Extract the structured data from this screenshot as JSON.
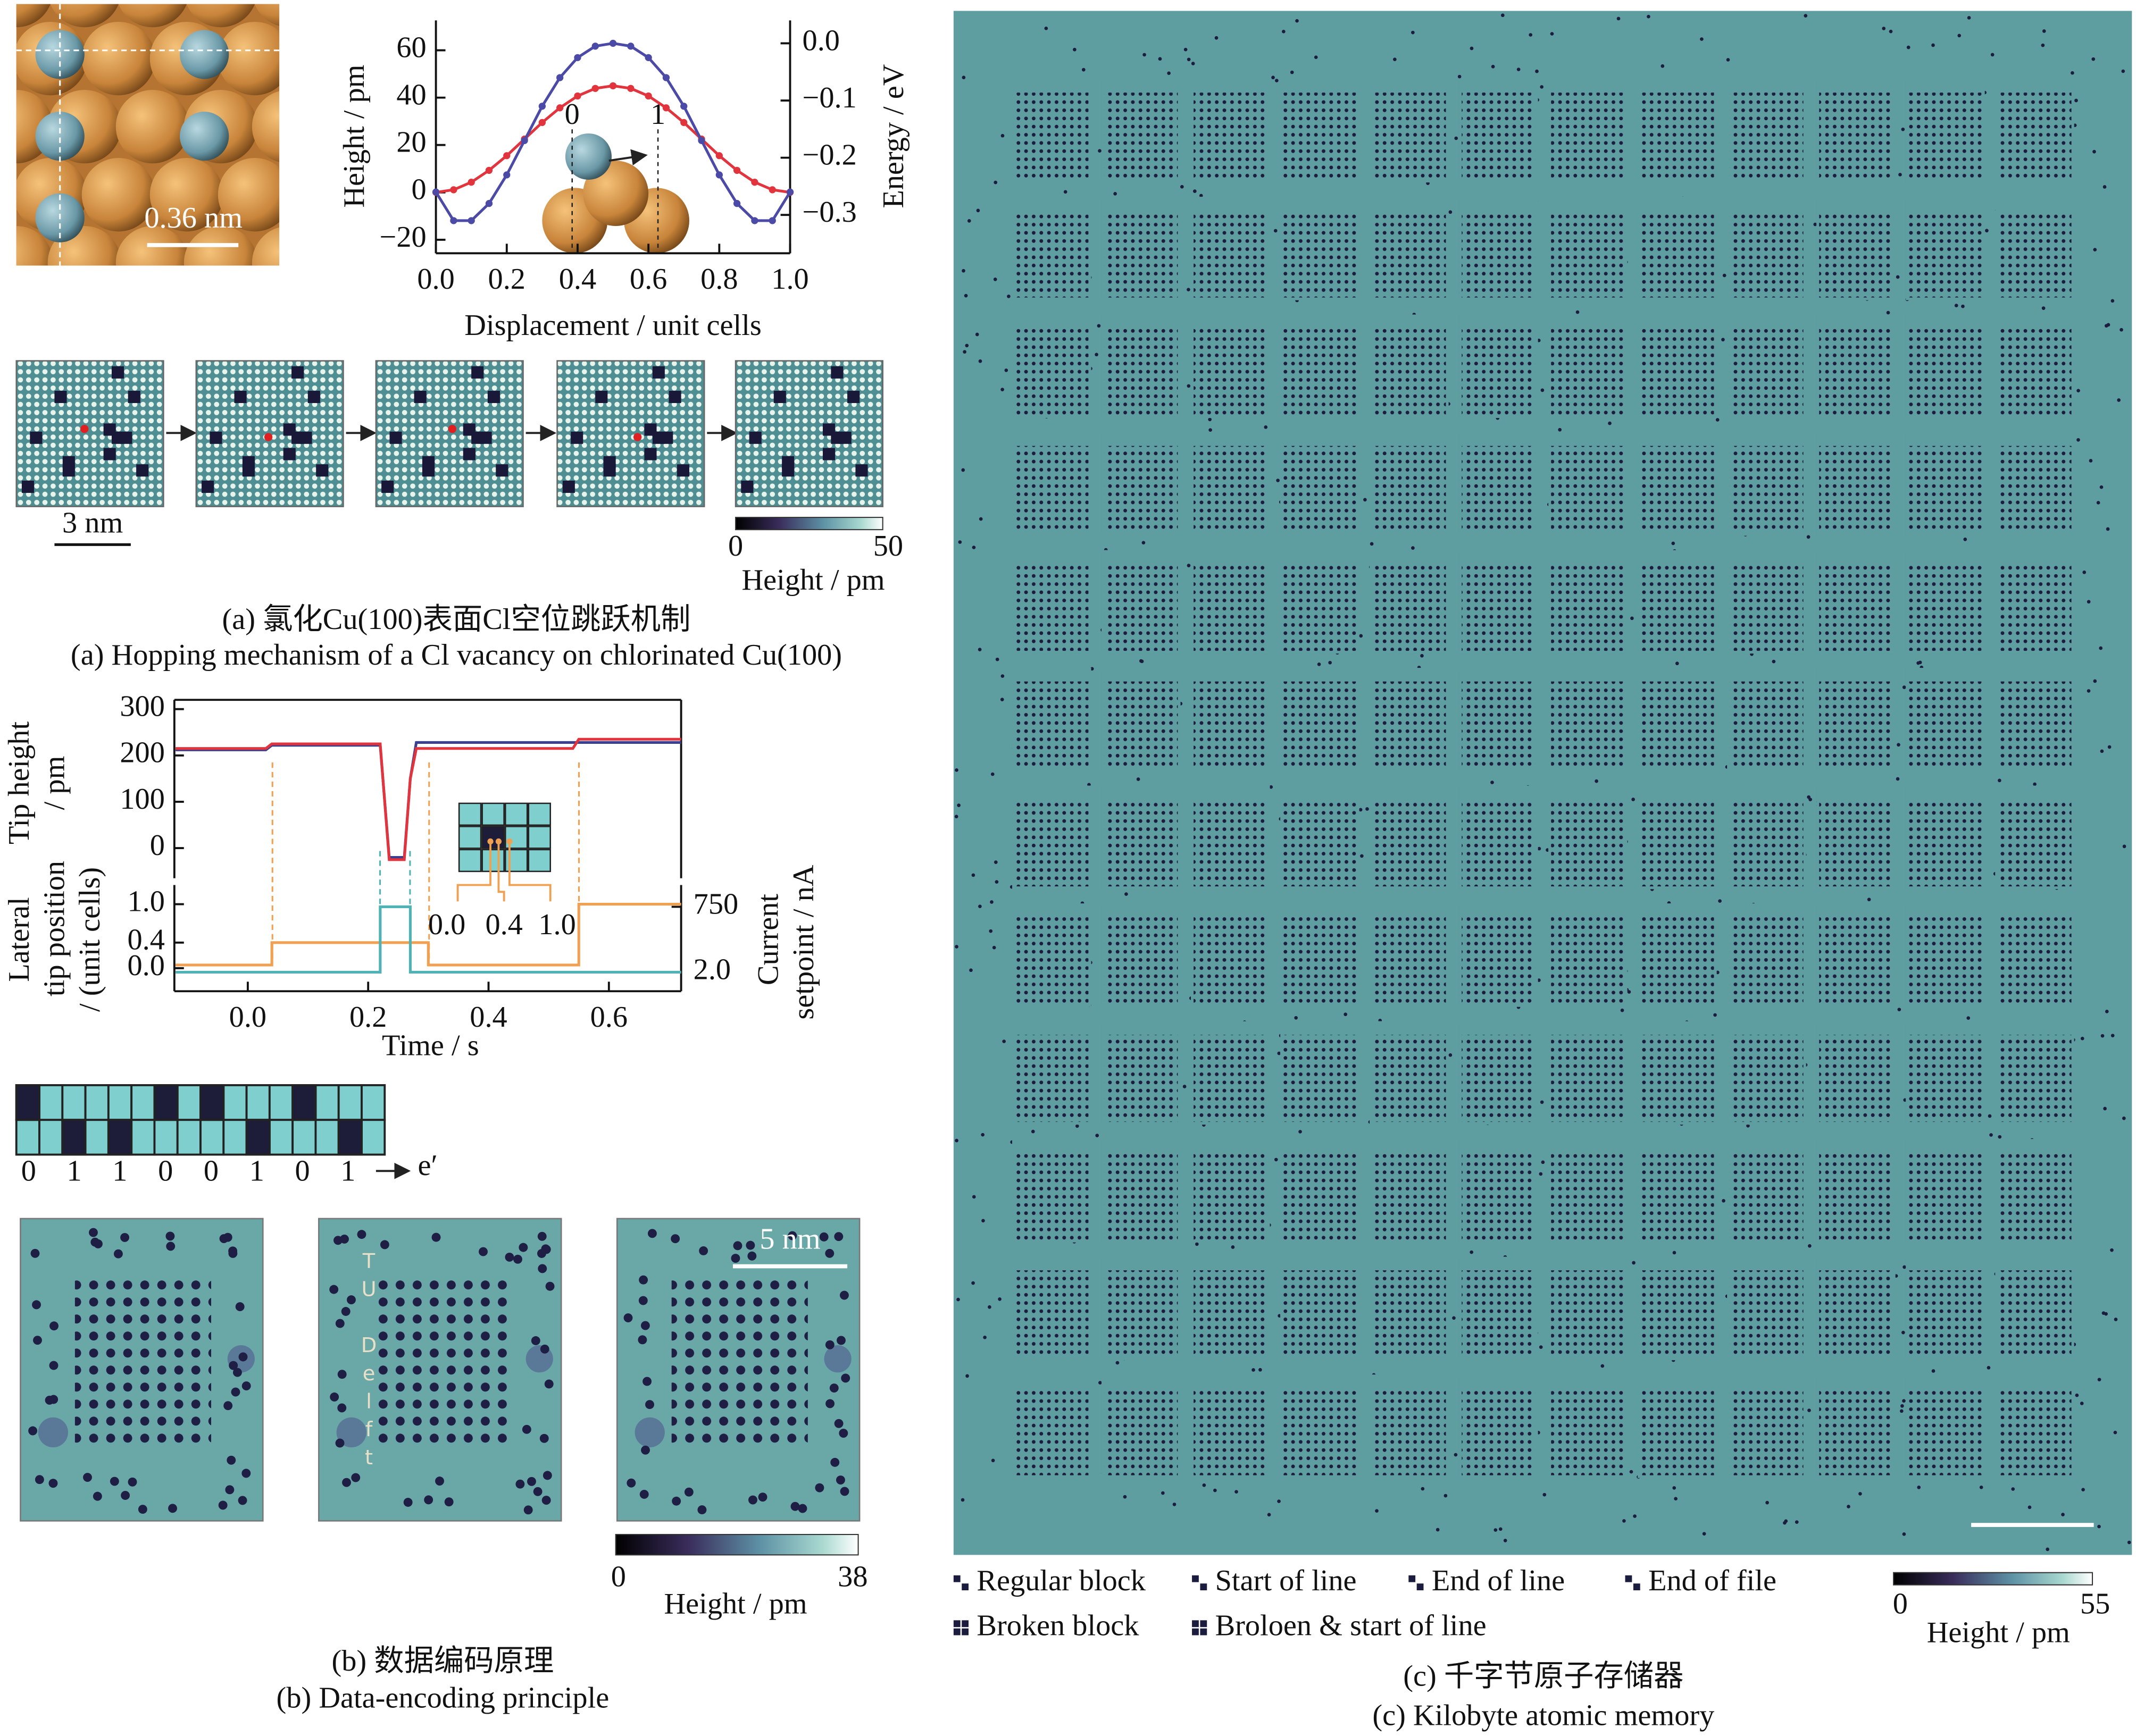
{
  "chart_data": [
    {
      "type": "line",
      "xlabel": "Displacement / unit cells",
      "ylabel": "Height / pm",
      "y2label": "Energy / eV",
      "x": [
        0,
        0.05,
        0.1,
        0.15,
        0.2,
        0.25,
        0.3,
        0.35,
        0.4,
        0.45,
        0.5,
        0.55,
        0.6,
        0.65,
        0.7,
        0.75,
        0.8,
        0.85,
        0.9,
        0.95,
        1
      ],
      "xlim": [
        0,
        1
      ],
      "xticks": [
        {
          "value": 0,
          "label": "0.0"
        },
        {
          "value": 0.2,
          "label": "0.2"
        },
        {
          "value": 0.4,
          "label": "0.4"
        },
        {
          "value": 0.6,
          "label": "0.6"
        },
        {
          "value": 0.8,
          "label": "0.8"
        },
        {
          "value": 1,
          "label": "1.0"
        }
      ],
      "ylim": [
        -25.7,
        72.6
      ],
      "yticks": [
        {
          "value": -20,
          "label": "−20"
        },
        0,
        20,
        40,
        60
      ],
      "y2lim": [
        -0.367,
        0.04
      ],
      "y2ticks": [
        {
          "value": 0,
          "label": "0.0"
        },
        {
          "value": -0.1,
          "label": "−0.1"
        },
        {
          "value": -0.2,
          "label": "−0.2"
        },
        {
          "value": -0.3,
          "label": "−0.3"
        }
      ],
      "series": [
        {
          "color": "#e2343c",
          "values": [
            0,
            1.1,
            4.3,
            9.3,
            15.5,
            22.5,
            29.5,
            35.7,
            40.7,
            43.9,
            45,
            43.9,
            40.7,
            35.7,
            29.5,
            22.5,
            15.5,
            9.3,
            4.3,
            1.1,
            0
          ]
        },
        {
          "color": "#4b4aa6",
          "axis": "y2",
          "values": [
            -0.26,
            -0.31,
            -0.31,
            -0.28,
            -0.23,
            -0.17,
            -0.11,
            -0.06,
            -0.025,
            -0.005,
            0,
            -0.005,
            -0.025,
            -0.06,
            -0.11,
            -0.17,
            -0.23,
            -0.28,
            -0.31,
            -0.31,
            -0.26
          ]
        }
      ],
      "inset_labels": [
        "0",
        "1"
      ]
    },
    {
      "type": "line",
      "ylabel": [
        "Tip height",
        "/ pm"
      ],
      "xlim": [
        -0.122,
        0.72
      ],
      "ylim": [
        -65,
        320
      ],
      "yticks": [
        0,
        100,
        200,
        300
      ],
      "series": [
        {
          "color": "#3b3f8f",
          "x": [
            -0.12,
            0.03,
            0.04,
            0.22,
            0.235,
            0.26,
            0.27,
            0.28,
            0.72
          ],
          "values": [
            212,
            212,
            222,
            222,
            -20,
            -20,
            150,
            228,
            228
          ]
        },
        {
          "color": "#e2343c",
          "x": [
            -0.12,
            0.03,
            0.04,
            0.22,
            0.235,
            0.26,
            0.27,
            0.28,
            0.54,
            0.55,
            0.72
          ],
          "values": [
            215,
            215,
            225,
            225,
            -25,
            -25,
            150,
            215,
            215,
            235,
            235
          ]
        }
      ]
    },
    {
      "type": "line",
      "xlabel": "Time / s",
      "ylabel": [
        "Lateral",
        "tip position",
        "/ (unit cells)"
      ],
      "y2label": [
        "Current",
        "setpoint / nA"
      ],
      "xlim": [
        -0.122,
        0.72
      ],
      "xticks": [
        {
          "value": 0,
          "label": "0.0"
        },
        {
          "value": 0.2,
          "label": "0.2"
        },
        {
          "value": 0.4,
          "label": "0.4"
        },
        {
          "value": 0.6,
          "label": "0.6"
        }
      ],
      "ylim": [
        -0.36,
        1.3
      ],
      "yticks": [
        {
          "value": 0,
          "label": "0.0"
        },
        {
          "value": 0.4,
          "label": "0.4"
        },
        {
          "value": 1,
          "label": "1.0"
        }
      ],
      "y2lim": [
        0.355,
        5410
      ],
      "y2scale": "log",
      "y2ticks": [
        {
          "value": 2,
          "label": "2.0"
        },
        750
      ],
      "series": [
        {
          "color": "#f0a050",
          "x": [
            -0.12,
            0.04,
            0.04,
            0.3,
            0.3,
            0.55,
            0.55,
            0.72
          ],
          "values": [
            0.05,
            0.05,
            0.4,
            0.4,
            0.05,
            0.05,
            1,
            1
          ]
        },
        {
          "color": "#4fb3b5",
          "axis": "y2",
          "x": [
            -0.12,
            0.22,
            0.22,
            0.27,
            0.27,
            0.72
          ],
          "values": [
            2,
            2,
            750,
            750,
            2,
            2
          ]
        }
      ],
      "inset_labels": [
        "0.0",
        "0.4",
        "1.0"
      ]
    }
  ],
  "panel_a": {
    "scale_bar_atoms": "0.36 nm",
    "scale_bar_sequence": "3 nm",
    "colorbar": {
      "ticks": [
        0,
        50
      ],
      "label": "Height / pm"
    },
    "caption_zh": "(a) 氯化Cu(100)表面Cl空位跳跃机制",
    "caption_en": "(a) Hopping mechanism of a Cl vacancy on chlorinated Cu(100)"
  },
  "panel_b": {
    "bits": [
      0,
      1,
      1,
      0,
      0,
      1,
      0,
      1
    ],
    "bits_arrow_label": "e′",
    "image_text": "TU Delft",
    "scale_bar": "5 nm",
    "colorbar": {
      "ticks": [
        0,
        38
      ],
      "label": "Height / pm"
    },
    "caption_zh": "(b) 数据编码原理",
    "caption_en": "(b) Data-encoding principle"
  },
  "panel_c": {
    "legend": [
      "Regular block",
      "Start of line",
      "End of line",
      "End of file",
      "Broken block",
      "Broloen & start of line"
    ],
    "colorbar": {
      "ticks": [
        0,
        55
      ],
      "label": "Height / pm"
    },
    "caption_zh": "(c) 千字节原子存储器",
    "caption_en": "(c) Kilobyte atomic memory"
  }
}
